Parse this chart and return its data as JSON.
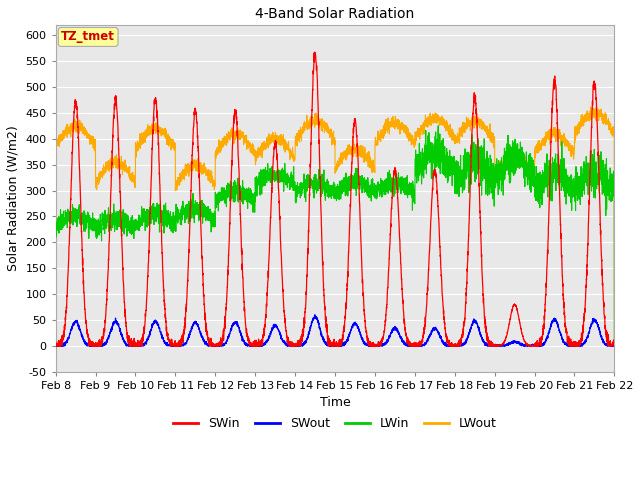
{
  "title": "4-Band Solar Radiation",
  "xlabel": "Time",
  "ylabel": "Solar Radiation (W/m2)",
  "ylim": [
    -50,
    620
  ],
  "yticks": [
    -50,
    0,
    50,
    100,
    150,
    200,
    250,
    300,
    350,
    400,
    450,
    500,
    550,
    600
  ],
  "x_tick_labels": [
    "Feb 8",
    "Feb 9",
    "Feb 10",
    "Feb 11",
    "Feb 12",
    "Feb 13",
    "Feb 14",
    "Feb 15",
    "Feb 16",
    "Feb 17",
    "Feb 18",
    "Feb 19",
    "Feb 20",
    "Feb 21",
    "Feb 22"
  ],
  "background_color": "#ffffff",
  "plot_bg_color": "#e8e8e8",
  "grid_color": "#ffffff",
  "legend_labels": [
    "SWin",
    "SWout",
    "LWin",
    "LWout"
  ],
  "legend_colors": [
    "#ff0000",
    "#0000ff",
    "#00cc00",
    "#ffaa00"
  ],
  "annotation_text": "TZ_tmet",
  "annotation_color": "#cc0000",
  "annotation_bg": "#ffff99",
  "n_days": 14,
  "swin_amps": [
    475,
    475,
    475,
    455,
    455,
    390,
    565,
    435,
    340,
    340,
    480,
    80,
    515,
    510
  ],
  "lwout_base": [
    385,
    315,
    380,
    310,
    370,
    360,
    395,
    340,
    390,
    400,
    395,
    325,
    370,
    410
  ],
  "lwin_base": [
    230,
    225,
    235,
    245,
    280,
    310,
    295,
    295,
    295,
    310,
    290,
    295,
    270,
    270
  ],
  "seed": 7
}
